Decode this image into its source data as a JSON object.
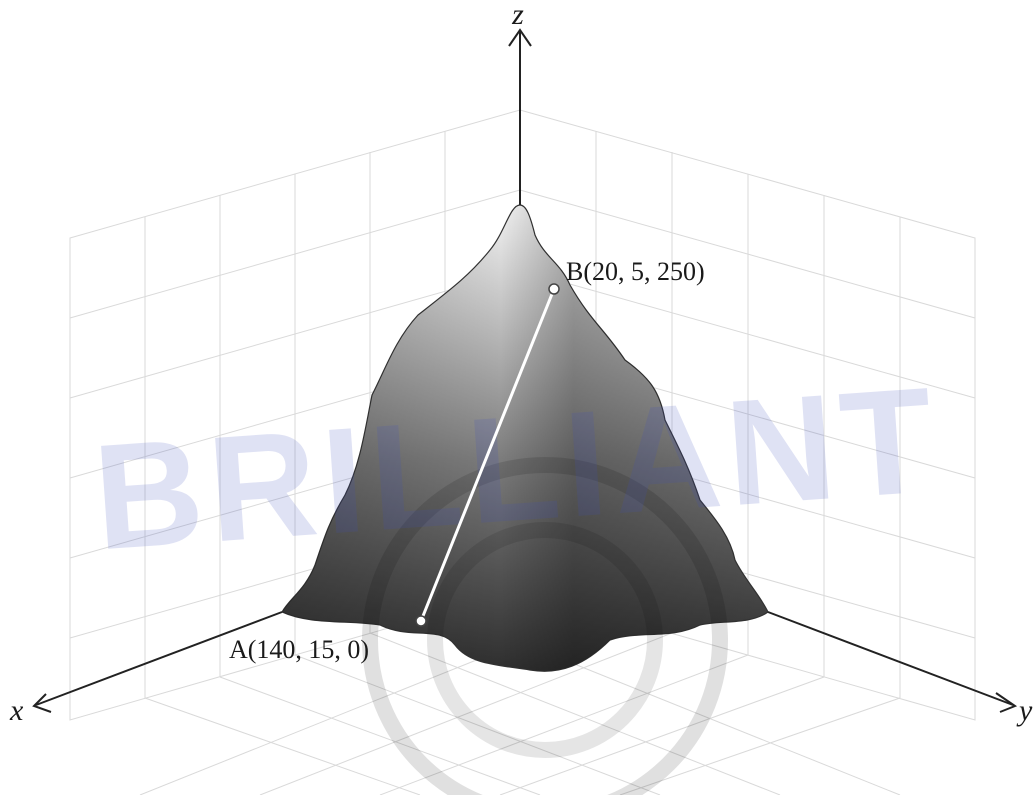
{
  "axes": {
    "x": "x",
    "y": "y",
    "z": "z"
  },
  "points": {
    "A": {
      "label": "A(140, 15, 0)"
    },
    "B": {
      "label": "B(20, 5, 250)"
    }
  },
  "watermark": {
    "text": "BRILLIANT"
  },
  "colors": {
    "axis": "#222222",
    "grid": "#d9d9d9",
    "segment": "#ffffff",
    "watermark": "#3f4fc0"
  }
}
